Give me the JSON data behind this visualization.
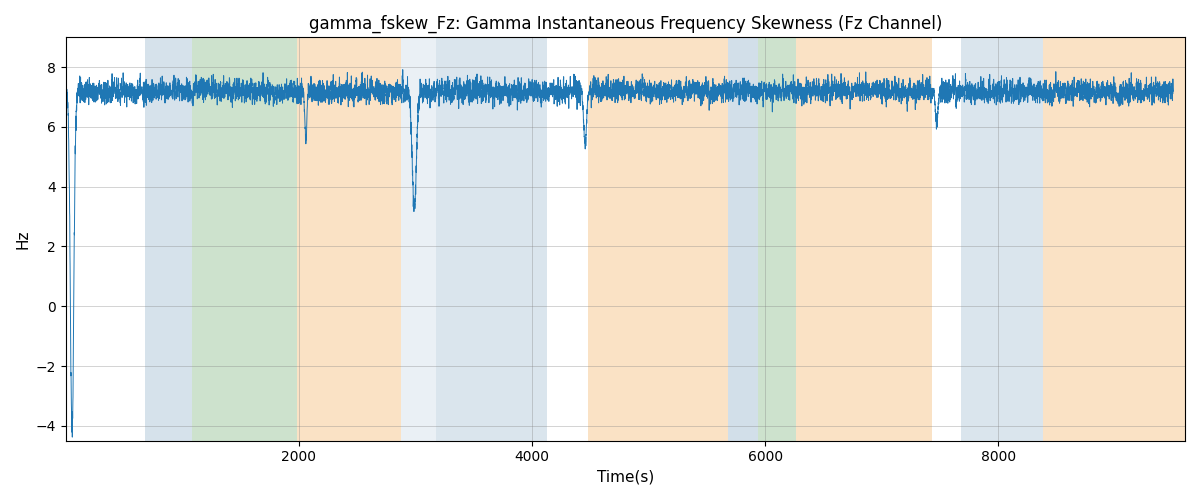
{
  "title": "gamma_fskew_Fz: Gamma Instantaneous Frequency Skewness (Fz Channel)",
  "xlabel": "Time(s)",
  "ylabel": "Hz",
  "ylim": [
    -4.5,
    9.0
  ],
  "xlim": [
    0,
    9600
  ],
  "yticks": [
    -4,
    -2,
    0,
    2,
    4,
    6,
    8
  ],
  "xticks": [
    2000,
    4000,
    6000,
    8000
  ],
  "bg_bands": [
    {
      "xmin": 0,
      "xmax": 680,
      "color": "#ffffff",
      "alpha": 0.0
    },
    {
      "xmin": 680,
      "xmax": 1080,
      "color": "#aec6d8",
      "alpha": 0.5
    },
    {
      "xmin": 1080,
      "xmax": 1980,
      "color": "#90c090",
      "alpha": 0.45
    },
    {
      "xmin": 1980,
      "xmax": 2880,
      "color": "#f5c080",
      "alpha": 0.45
    },
    {
      "xmin": 2880,
      "xmax": 3180,
      "color": "#aec6d8",
      "alpha": 0.25
    },
    {
      "xmin": 3180,
      "xmax": 4130,
      "color": "#aec6d8",
      "alpha": 0.45
    },
    {
      "xmin": 4130,
      "xmax": 4480,
      "color": "#ffffff",
      "alpha": 0.0
    },
    {
      "xmin": 4480,
      "xmax": 5680,
      "color": "#f5c080",
      "alpha": 0.45
    },
    {
      "xmin": 5680,
      "xmax": 5940,
      "color": "#aec6d8",
      "alpha": 0.55
    },
    {
      "xmin": 5940,
      "xmax": 6260,
      "color": "#90c090",
      "alpha": 0.45
    },
    {
      "xmin": 6260,
      "xmax": 7430,
      "color": "#f5c080",
      "alpha": 0.45
    },
    {
      "xmin": 7430,
      "xmax": 7680,
      "color": "#ffffff",
      "alpha": 0.0
    },
    {
      "xmin": 7680,
      "xmax": 8380,
      "color": "#aec6d8",
      "alpha": 0.45
    },
    {
      "xmin": 8380,
      "xmax": 9600,
      "color": "#f5c080",
      "alpha": 0.45
    }
  ],
  "line_color": "#1f77b4",
  "line_width": 0.7,
  "figsize": [
    12.0,
    5.0
  ],
  "dpi": 100
}
